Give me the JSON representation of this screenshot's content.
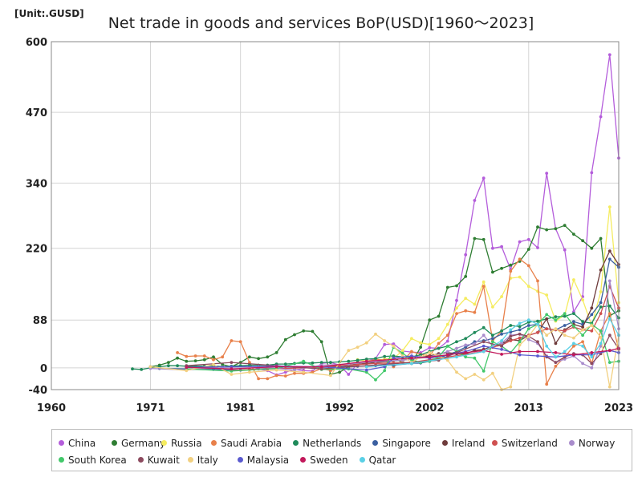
{
  "unit_label": "[Unit:.GUSD]",
  "chart_data": {
    "type": "line",
    "title": "Net trade in goods and services BoP(USD)[1960～2023]",
    "xlabel": "",
    "ylabel": "",
    "xlim": [
      1960,
      2023
    ],
    "ylim": [
      -40,
      600
    ],
    "x_ticks": [
      1960,
      1971,
      1981,
      1992,
      2002,
      2013,
      2023
    ],
    "y_ticks": [
      -40,
      0,
      88,
      220,
      340,
      470,
      600
    ],
    "grid": true,
    "legend_position": "bottom",
    "series": [
      {
        "name": "China",
        "color": "#b45ddb",
        "x": [
          1982,
          1983,
          1984,
          1985,
          1986,
          1987,
          1988,
          1989,
          1990,
          1991,
          1992,
          1993,
          1994,
          1995,
          1996,
          1997,
          1998,
          1999,
          2000,
          2001,
          2002,
          2003,
          2004,
          2005,
          2006,
          2007,
          2008,
          2009,
          2010,
          2011,
          2012,
          2013,
          2014,
          2015,
          2016,
          2017,
          2018,
          2019,
          2020,
          2021,
          2022,
          2023
        ],
        "y": [
          4,
          -2,
          -5,
          -13,
          -8,
          -3,
          -5,
          -6,
          8,
          10,
          5,
          -12,
          8,
          12,
          17,
          43,
          44,
          31,
          29,
          28,
          37,
          36,
          49,
          124,
          208,
          308,
          349,
          220,
          223,
          181,
          232,
          236,
          221,
          358,
          256,
          217,
          103,
          131,
          359,
          462,
          576,
          386
        ]
      },
      {
        "name": "Germany",
        "color": "#2e7d32",
        "x": [
          1971,
          1972,
          1973,
          1974,
          1975,
          1976,
          1977,
          1978,
          1979,
          1980,
          1981,
          1982,
          1983,
          1984,
          1985,
          1986,
          1987,
          1988,
          1989,
          1990,
          1991,
          1992,
          1993,
          1994,
          1995,
          1996,
          1997,
          1998,
          1999,
          2000,
          2001,
          2002,
          2003,
          2004,
          2005,
          2006,
          2007,
          2008,
          2009,
          2010,
          2011,
          2012,
          2013,
          2014,
          2015,
          2016,
          2017,
          2018,
          2019,
          2020,
          2021,
          2022,
          2023
        ],
        "y": [
          2,
          5,
          10,
          18,
          12,
          13,
          15,
          20,
          6,
          2,
          10,
          20,
          17,
          20,
          28,
          52,
          61,
          68,
          67,
          48,
          -12,
          -8,
          2,
          10,
          11,
          12,
          16,
          18,
          10,
          8,
          38,
          88,
          95,
          148,
          151,
          168,
          238,
          236,
          176,
          183,
          189,
          196,
          218,
          259,
          254,
          256,
          262,
          246,
          234,
          220,
          238,
          96,
          105
        ]
      },
      {
        "name": "Russia",
        "color": "#f5ec60",
        "x": [
          1994,
          1995,
          1996,
          1997,
          1998,
          1999,
          2000,
          2001,
          2002,
          2003,
          2004,
          2005,
          2006,
          2007,
          2008,
          2009,
          2010,
          2011,
          2012,
          2013,
          2014,
          2015,
          2016,
          2017,
          2018,
          2019,
          2020,
          2021,
          2022,
          2023
        ],
        "y": [
          15,
          13,
          14,
          16,
          17,
          32,
          54,
          46,
          43,
          54,
          80,
          110,
          128,
          117,
          158,
          112,
          131,
          165,
          167,
          150,
          141,
          134,
          86,
          97,
          162,
          125,
          78,
          140,
          296,
          120
        ]
      },
      {
        "name": "Saudi Arabia",
        "color": "#e8804a",
        "x": [
          1974,
          1975,
          1976,
          1977,
          1978,
          1979,
          1980,
          1981,
          1982,
          1983,
          1984,
          1985,
          1986,
          1987,
          1988,
          1989,
          1990,
          1991,
          1992,
          1993,
          1994,
          1995,
          1996,
          1997,
          1998,
          1999,
          2000,
          2001,
          2002,
          2003,
          2004,
          2005,
          2006,
          2007,
          2008,
          2009,
          2010,
          2011,
          2012,
          2013,
          2014,
          2015,
          2016,
          2017,
          2018,
          2019,
          2020,
          2021,
          2022,
          2023
        ],
        "y": [
          28,
          21,
          22,
          22,
          15,
          20,
          50,
          48,
          10,
          -20,
          -20,
          -14,
          -15,
          -10,
          -10,
          -8,
          -1,
          -5,
          0,
          4,
          5,
          10,
          16,
          14,
          2,
          13,
          30,
          25,
          22,
          45,
          60,
          100,
          105,
          102,
          150,
          50,
          68,
          178,
          200,
          188,
          160,
          -30,
          3,
          20,
          40,
          48,
          8,
          68,
          100,
          34
        ]
      },
      {
        "name": "Netherlands",
        "color": "#1f8a5a",
        "x": [
          1969,
          1970,
          1971,
          1972,
          1973,
          1974,
          1975,
          1976,
          1977,
          1978,
          1979,
          1980,
          1981,
          1982,
          1983,
          1984,
          1985,
          1986,
          1987,
          1988,
          1989,
          1990,
          1991,
          1992,
          1993,
          1994,
          1995,
          1996,
          1997,
          1998,
          1999,
          2000,
          2001,
          2002,
          2003,
          2004,
          2005,
          2006,
          2007,
          2008,
          2009,
          2010,
          2011,
          2012,
          2013,
          2014,
          2015,
          2016,
          2017,
          2018,
          2019,
          2020,
          2021,
          2022,
          2023
        ],
        "y": [
          -2,
          -3,
          0,
          2,
          4,
          4,
          3,
          3,
          3,
          4,
          2,
          3,
          4,
          5,
          5,
          5,
          7,
          7,
          8,
          9,
          9,
          10,
          10,
          11,
          12,
          14,
          16,
          17,
          21,
          22,
          20,
          20,
          24,
          30,
          36,
          40,
          48,
          54,
          65,
          74,
          60,
          68,
          78,
          76,
          84,
          86,
          90,
          94,
          95,
          100,
          85,
          82,
          112,
          114,
          92
        ]
      },
      {
        "name": "Singapore",
        "color": "#3a5fa0",
        "x": [
          1972,
          1975,
          1978,
          1981,
          1984,
          1987,
          1990,
          1992,
          1994,
          1996,
          1998,
          2000,
          2001,
          2002,
          2003,
          2004,
          2005,
          2006,
          2007,
          2008,
          2009,
          2010,
          2011,
          2012,
          2013,
          2014,
          2015,
          2016,
          2017,
          2018,
          2019,
          2020,
          2021,
          2022,
          2023
        ],
        "y": [
          -1,
          -2,
          -3,
          -4,
          -1,
          0,
          1,
          2,
          3,
          4,
          5,
          8,
          9,
          12,
          18,
          24,
          30,
          38,
          48,
          50,
          54,
          62,
          66,
          70,
          78,
          80,
          72,
          70,
          78,
          85,
          80,
          98,
          120,
          200,
          185
        ]
      },
      {
        "name": "Ireland",
        "color": "#6e3b3b",
        "x": [
          1990,
          1993,
          1996,
          1999,
          2002,
          2003,
          2004,
          2005,
          2006,
          2007,
          2008,
          2009,
          2010,
          2011,
          2012,
          2013,
          2014,
          2015,
          2016,
          2017,
          2018,
          2019,
          2020,
          2021,
          2022,
          2023
        ],
        "y": [
          2,
          5,
          10,
          14,
          22,
          26,
          28,
          26,
          26,
          32,
          34,
          40,
          45,
          52,
          50,
          60,
          65,
          90,
          45,
          70,
          80,
          75,
          110,
          180,
          215,
          190
        ]
      },
      {
        "name": "Switzerland",
        "color": "#cf5050",
        "x": [
          1980,
          1982,
          1984,
          1986,
          1988,
          1990,
          1992,
          1994,
          1996,
          1998,
          2000,
          2002,
          2004,
          2006,
          2008,
          2009,
          2010,
          2011,
          2012,
          2013,
          2014,
          2015,
          2016,
          2017,
          2018,
          2019,
          2020,
          2021,
          2022,
          2023
        ],
        "y": [
          -5,
          -3,
          -2,
          -1,
          0,
          1,
          4,
          6,
          8,
          9,
          10,
          15,
          20,
          25,
          30,
          38,
          42,
          50,
          55,
          60,
          65,
          72,
          70,
          68,
          75,
          70,
          68,
          100,
          150,
          110
        ]
      },
      {
        "name": "Norway",
        "color": "#a98ccc",
        "x": [
          1971,
          1975,
          1979,
          1983,
          1987,
          1990,
          1993,
          1996,
          1999,
          2002,
          2004,
          2005,
          2006,
          2007,
          2008,
          2009,
          2010,
          2011,
          2012,
          2013,
          2014,
          2015,
          2016,
          2017,
          2018,
          2019,
          2020,
          2021,
          2022,
          2023
        ],
        "y": [
          -1,
          -4,
          1,
          2,
          -4,
          5,
          7,
          12,
          14,
          20,
          30,
          36,
          42,
          44,
          60,
          40,
          46,
          60,
          62,
          52,
          45,
          22,
          10,
          16,
          22,
          8,
          0,
          40,
          160,
          72
        ]
      },
      {
        "name": "South Korea",
        "color": "#42c86a",
        "x": [
          1975,
          1980,
          1985,
          1988,
          1990,
          1993,
          1995,
          1996,
          1997,
          1998,
          1999,
          2000,
          2001,
          2002,
          2003,
          2004,
          2005,
          2006,
          2007,
          2008,
          2009,
          2010,
          2011,
          2012,
          2013,
          2014,
          2015,
          2016,
          2017,
          2018,
          2019,
          2020,
          2021,
          2022,
          2023
        ],
        "y": [
          -2,
          -6,
          -1,
          12,
          -3,
          -2,
          -8,
          -22,
          -5,
          38,
          27,
          15,
          10,
          12,
          20,
          40,
          30,
          20,
          18,
          -6,
          48,
          40,
          28,
          48,
          72,
          80,
          98,
          88,
          100,
          77,
          60,
          80,
          68,
          10,
          12
        ]
      },
      {
        "name": "Kuwait",
        "color": "#8c4a5e",
        "x": [
          1975,
          1980,
          1985,
          1990,
          1995,
          2000,
          2003,
          2005,
          2008,
          2010,
          2011,
          2012,
          2013,
          2014,
          2015,
          2016,
          2017,
          2018,
          2019,
          2020,
          2021,
          2022,
          2023
        ],
        "y": [
          4,
          10,
          4,
          -2,
          4,
          10,
          14,
          28,
          48,
          40,
          58,
          62,
          58,
          48,
          20,
          10,
          20,
          26,
          24,
          8,
          26,
          60,
          35
        ]
      },
      {
        "name": "Italy",
        "color": "#f2d080",
        "x": [
          1971,
          1975,
          1978,
          1980,
          1982,
          1985,
          1988,
          1991,
          1993,
          1994,
          1995,
          1996,
          1997,
          1998,
          1999,
          2000,
          2001,
          2002,
          2003,
          2004,
          2005,
          2006,
          2007,
          2008,
          2009,
          2010,
          2011,
          2012,
          2013,
          2014,
          2015,
          2016,
          2017,
          2018,
          2019,
          2020,
          2021,
          2022,
          2023
        ],
        "y": [
          2,
          -5,
          6,
          -12,
          -8,
          -4,
          -8,
          -14,
          32,
          38,
          46,
          62,
          50,
          40,
          22,
          10,
          20,
          28,
          22,
          14,
          -8,
          -20,
          -12,
          -22,
          -10,
          -40,
          -35,
          42,
          58,
          80,
          60,
          72,
          60,
          55,
          70,
          78,
          56,
          -35,
          60
        ]
      },
      {
        "name": "Malaysia",
        "color": "#5a5acf",
        "x": [
          1975,
          1980,
          1985,
          1990,
          1995,
          1997,
          1998,
          2000,
          2002,
          2004,
          2006,
          2008,
          2010,
          2012,
          2014,
          2016,
          2018,
          2020,
          2022,
          2023
        ],
        "y": [
          1,
          2,
          3,
          2,
          -4,
          2,
          18,
          22,
          18,
          24,
          30,
          40,
          34,
          24,
          22,
          20,
          24,
          24,
          32,
          28
        ]
      },
      {
        "name": "Sweden",
        "color": "#c2185b",
        "x": [
          1975,
          1980,
          1985,
          1990,
          1995,
          2000,
          2002,
          2004,
          2006,
          2008,
          2010,
          2012,
          2014,
          2016,
          2018,
          2020,
          2022,
          2023
        ],
        "y": [
          1,
          -2,
          2,
          2,
          12,
          18,
          20,
          24,
          28,
          32,
          25,
          30,
          30,
          28,
          24,
          28,
          32,
          36
        ]
      },
      {
        "name": "Qatar",
        "color": "#5ad0e6",
        "x": [
          1995,
          2000,
          2005,
          2008,
          2010,
          2011,
          2012,
          2013,
          2014,
          2015,
          2016,
          2017,
          2018,
          2019,
          2020,
          2021,
          2022,
          2023
        ],
        "y": [
          2,
          8,
          20,
          30,
          50,
          70,
          82,
          88,
          80,
          40,
          20,
          30,
          45,
          40,
          20,
          45,
          90,
          60
        ]
      }
    ]
  }
}
